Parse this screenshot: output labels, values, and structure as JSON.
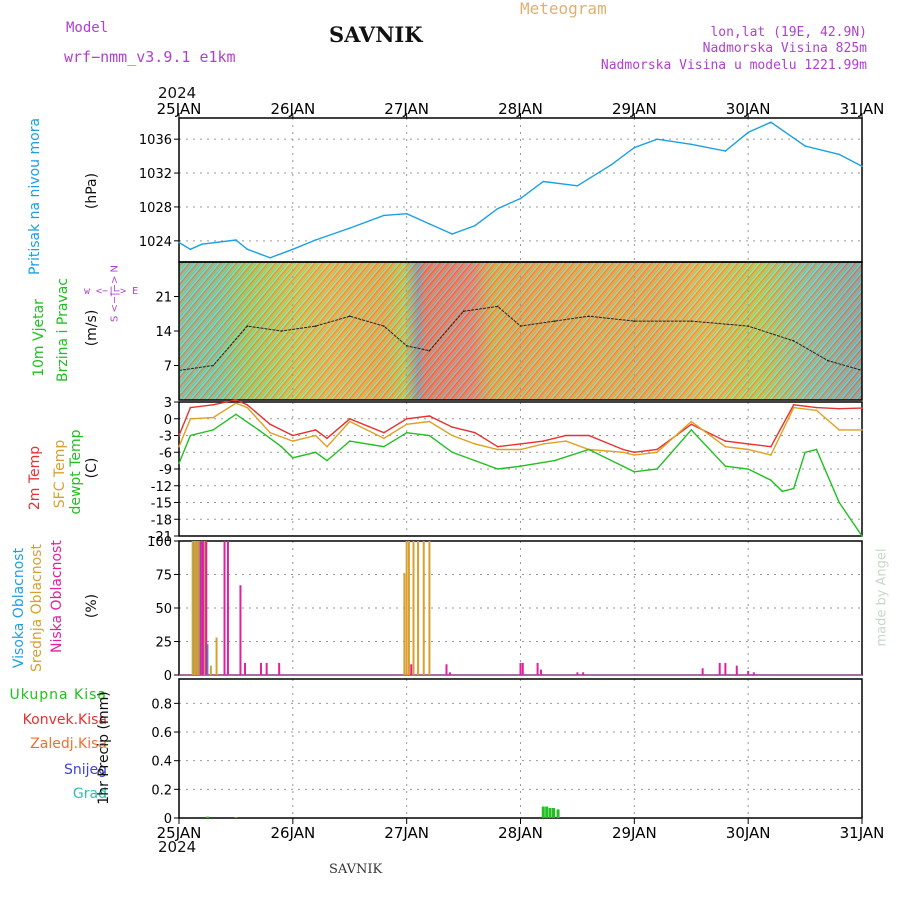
{
  "header": {
    "title": "SAVNIK",
    "subtitle": "Meteogram",
    "model_label": "Model",
    "model_name": "wrf−nmm_v3.9.1  e1km",
    "location": "lon,lat (19E, 42.9N)",
    "elevation": "Nadmorska Visina 825m",
    "model_elevation": "Nadmorska Visina u modelu 1221.99m",
    "footer_title": "SAVNIK",
    "watermark": "made by Angel"
  },
  "colors": {
    "pressure": "#1aa0e0",
    "temp2m": "#e83030",
    "sfctemp": "#e0a020",
    "dewpoint": "#20c020",
    "high_cloud": "#20a0e0",
    "mid_cloud": "#d8a030",
    "low_cloud": "#e020a0",
    "total_precip": "#20c020",
    "purple_text": "#b040d0"
  },
  "time_axis": {
    "year": "2024",
    "ticks": [
      "25JAN",
      "26JAN",
      "27JAN",
      "28JAN",
      "29JAN",
      "30JAN",
      "31JAN"
    ]
  },
  "panel_labels": {
    "pressure": [
      "Pritisak na nivou mora"
    ],
    "pressure_unit": "(hPa)",
    "wind": [
      "10m Vjetar",
      "Brzina i Pravac"
    ],
    "wind_unit": "(m/s)",
    "wind_compass": "w <−|−> E",
    "wind_compass_ns": "S <−|−> N",
    "temp": [
      "2m Temp",
      "SFC Temp",
      "dewpt Temp"
    ],
    "temp_unit": "(C)",
    "cloud": [
      "Visoka Oblacnost",
      "Srednja Oblacnost",
      "Niska Oblacnost"
    ],
    "cloud_unit": "(%)",
    "precip_legend": [
      "Ukupna Kisa",
      "Konvek.Kisa",
      "Zaledj.Kisa",
      "Snijeg",
      "Grad"
    ],
    "precip_unit": "1hr Precip (mm)"
  },
  "chart_data": [
    {
      "type": "line",
      "panel": "pressure",
      "ylabel": "(hPa)",
      "yticks": [
        1024,
        1028,
        1032,
        1036
      ],
      "ylim": [
        1021.5,
        1038.5
      ],
      "series": [
        {
          "name": "Pritisak na nivou mora",
          "x": [
            0,
            0.1,
            0.2,
            0.5,
            0.6,
            0.8,
            1.0,
            1.2,
            1.5,
            1.8,
            2.0,
            2.2,
            2.4,
            2.6,
            2.8,
            3.0,
            3.2,
            3.5,
            3.8,
            4.0,
            4.2,
            4.5,
            4.8,
            5.0,
            5.2,
            5.5,
            5.8,
            6.0
          ],
          "y": [
            1023.8,
            1023.0,
            1023.6,
            1024.1,
            1023.0,
            1022.0,
            1023.0,
            1024.1,
            1025.5,
            1027.0,
            1027.2,
            1026.0,
            1024.8,
            1025.8,
            1027.8,
            1029.0,
            1031.0,
            1030.5,
            1033.0,
            1035.0,
            1036.0,
            1035.4,
            1034.6,
            1036.8,
            1038.0,
            1035.2,
            1034.2,
            1032.8
          ]
        }
      ]
    },
    {
      "type": "line",
      "panel": "wind",
      "ylabel": "(m/s)",
      "yticks": [
        7,
        14,
        21
      ],
      "ylim": [
        0,
        28
      ],
      "series": [
        {
          "name": "10m Vjetar",
          "x": [
            0,
            0.3,
            0.6,
            0.9,
            1.2,
            1.5,
            1.8,
            2.0,
            2.2,
            2.5,
            2.8,
            3.0,
            3.3,
            3.6,
            4.0,
            4.5,
            5.0,
            5.4,
            5.7,
            6.0
          ],
          "y": [
            6,
            7,
            15,
            14,
            15,
            17,
            15,
            11,
            10,
            18,
            19,
            15,
            16,
            17,
            16,
            16,
            15,
            12,
            8,
            6
          ]
        }
      ]
    },
    {
      "type": "line",
      "panel": "temperature",
      "ylabel": "(C)",
      "yticks": [
        3,
        0,
        -3,
        -6,
        -9,
        -12,
        -15,
        -18,
        -21
      ],
      "ylim": [
        -21,
        3
      ],
      "series": [
        {
          "name": "2m Temp",
          "x": [
            0,
            0.1,
            0.3,
            0.5,
            0.6,
            0.8,
            1.0,
            1.2,
            1.3,
            1.5,
            1.8,
            2.0,
            2.2,
            2.4,
            2.6,
            2.8,
            3.0,
            3.2,
            3.4,
            3.6,
            3.9,
            4.0,
            4.2,
            4.5,
            4.8,
            5.0,
            5.2,
            5.4,
            5.6,
            5.8,
            6.0
          ],
          "y": [
            -3,
            2,
            2.5,
            3.4,
            2.5,
            -1,
            -3,
            -2,
            -3.5,
            0,
            -2.5,
            0,
            0.5,
            -1.5,
            -2.5,
            -5,
            -4.5,
            -4,
            -3,
            -3,
            -5.5,
            -6,
            -5.5,
            -1,
            -4,
            -4.5,
            -5,
            2.5,
            2,
            1.8,
            1.9
          ]
        },
        {
          "name": "SFC Temp",
          "x": [
            0,
            0.1,
            0.3,
            0.5,
            0.6,
            0.8,
            1.0,
            1.2,
            1.3,
            1.5,
            1.8,
            2.0,
            2.2,
            2.4,
            2.6,
            2.8,
            3.0,
            3.2,
            3.4,
            3.6,
            3.9,
            4.0,
            4.2,
            4.5,
            4.8,
            5.0,
            5.2,
            5.4,
            5.6,
            5.8,
            6.0
          ],
          "y": [
            -5,
            0,
            0.2,
            2.8,
            2.0,
            -2.5,
            -4,
            -3,
            -5,
            -0.5,
            -3.5,
            -1,
            -0.5,
            -3,
            -4.5,
            -5.5,
            -5.5,
            -4.5,
            -4,
            -5.5,
            -6,
            -6.5,
            -6,
            -0.5,
            -5,
            -5.5,
            -6.5,
            2.0,
            1.5,
            -2,
            -2
          ]
        },
        {
          "name": "dewpt Temp",
          "x": [
            0,
            0.1,
            0.3,
            0.5,
            0.7,
            0.9,
            1.0,
            1.2,
            1.3,
            1.5,
            1.8,
            2.0,
            2.2,
            2.4,
            2.6,
            2.8,
            3.0,
            3.3,
            3.6,
            3.9,
            4.0,
            4.2,
            4.5,
            4.8,
            5.0,
            5.2,
            5.3,
            5.4,
            5.5,
            5.6,
            5.8,
            6.0
          ],
          "y": [
            -8,
            -3,
            -2,
            0.8,
            -2,
            -5,
            -7,
            -6,
            -7.5,
            -4,
            -5,
            -2.5,
            -3,
            -6,
            -7.5,
            -9,
            -8.5,
            -7.5,
            -5.5,
            -8.5,
            -9.5,
            -9,
            -2,
            -8.5,
            -9,
            -11,
            -13,
            -12.5,
            -6,
            -5.5,
            -15,
            -21
          ]
        }
      ]
    },
    {
      "type": "bar",
      "panel": "cloud",
      "ylabel": "(%)",
      "yticks": [
        0,
        25,
        50,
        75,
        100
      ],
      "ylim": [
        0,
        100
      ],
      "series": [
        {
          "name": "Visoka Oblacnost",
          "x": [
            0.13,
            0.15,
            0.17,
            0.2,
            0.23,
            0.25
          ],
          "y": [
            100,
            100,
            100,
            100,
            100,
            23
          ]
        },
        {
          "name": "Srednja Oblacnost",
          "x": [
            0.12,
            0.14,
            0.16,
            0.18,
            0.22,
            0.28,
            0.33,
            1.98,
            2.0,
            2.02,
            2.06,
            2.1,
            2.15,
            2.2
          ],
          "y": [
            100,
            100,
            100,
            100,
            100,
            7,
            28,
            76,
            100,
            100,
            100,
            100,
            100,
            100
          ]
        },
        {
          "name": "Niska Oblacnost",
          "x": [
            0.19,
            0.21,
            0.24,
            0.4,
            0.43,
            0.54,
            0.58,
            0.72,
            0.77,
            0.88,
            2.04,
            2.35,
            2.38,
            3.0,
            3.02,
            3.15,
            3.18,
            3.5,
            3.55,
            4.6,
            4.75,
            4.8,
            4.9,
            5.0,
            5.05
          ],
          "y": [
            100,
            100,
            100,
            100,
            100,
            67,
            9,
            9,
            9,
            9,
            8,
            8,
            2,
            9,
            9,
            9,
            4,
            2,
            2,
            5,
            9,
            9,
            7,
            3,
            2
          ]
        }
      ]
    },
    {
      "type": "bar",
      "panel": "precip",
      "ylabel": "1hr Precip (mm)",
      "yticks": [
        0,
        0.2,
        0.4,
        0.6,
        0.8
      ],
      "ylim": [
        0,
        0.97
      ],
      "series": [
        {
          "name": "Ukupna Kisa",
          "x": [
            0.25,
            0.5,
            3.2,
            3.23,
            3.26,
            3.29,
            3.33
          ],
          "y": [
            0.01,
            0.005,
            0.08,
            0.08,
            0.07,
            0.07,
            0.06
          ]
        }
      ]
    }
  ]
}
